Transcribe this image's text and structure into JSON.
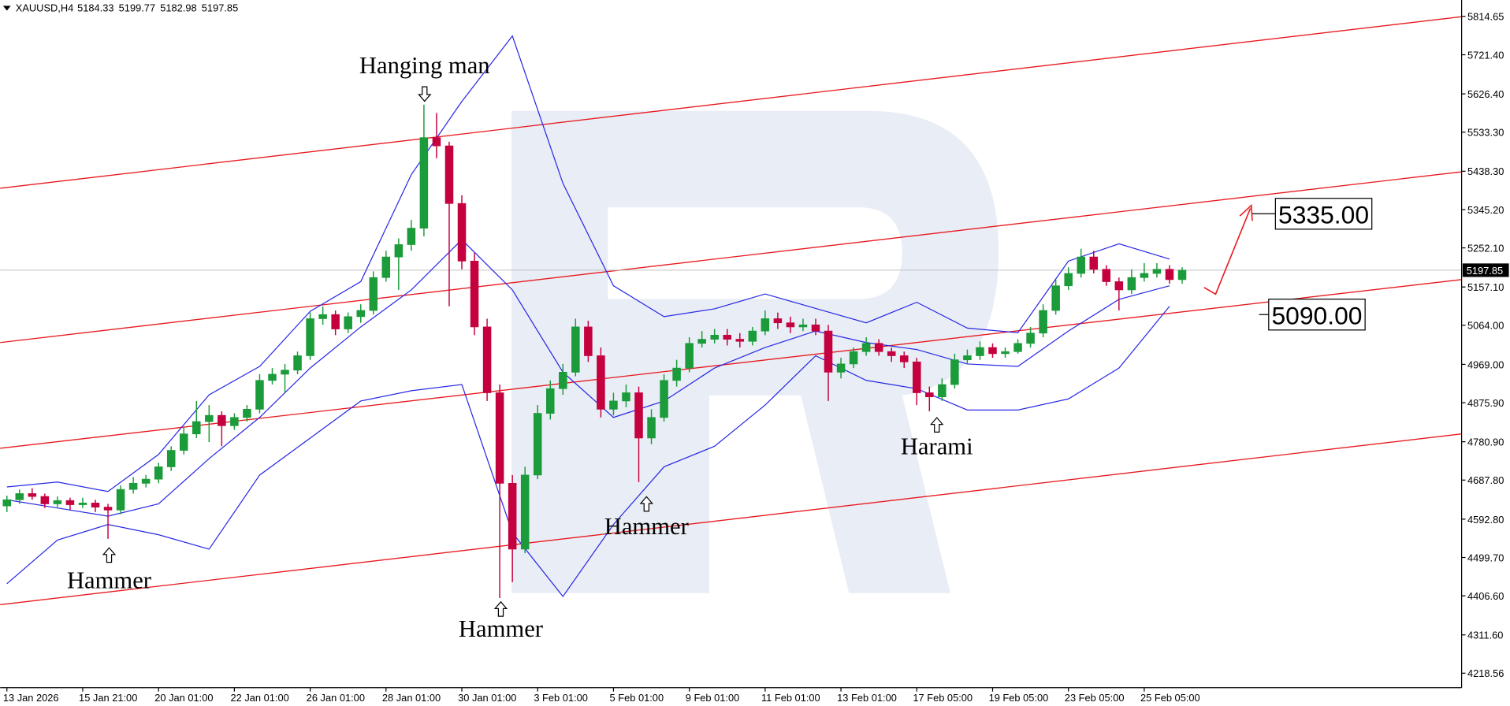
{
  "chart_data": {
    "type": "candlestick",
    "title": "XAUUSD,H4",
    "title_values": [
      5184.33,
      5199.77,
      5182.98,
      5197.85
    ],
    "up_color": "#1b9b3a",
    "down_color": "#c4003f",
    "categories": [
      "13 Jan 2026",
      null,
      null,
      null,
      null,
      null,
      "15 Jan 21:00",
      null,
      null,
      null,
      null,
      null,
      "20 Jan 01:00",
      null,
      null,
      null,
      null,
      null,
      "22 Jan 01:00",
      null,
      null,
      null,
      null,
      null,
      "26 Jan 01:00",
      null,
      null,
      null,
      null,
      null,
      "28 Jan 01:00",
      null,
      null,
      null,
      null,
      null,
      "30 Jan 01:00",
      null,
      null,
      null,
      null,
      null,
      "3 Feb 01:00",
      null,
      null,
      null,
      null,
      null,
      "5 Feb 01:00",
      null,
      null,
      null,
      null,
      null,
      "9 Feb 01:00",
      null,
      null,
      null,
      null,
      null,
      "11 Feb 01:00",
      null,
      null,
      null,
      null,
      null,
      "13 Feb 01:00",
      null,
      null,
      null,
      null,
      null,
      "17 Feb 05:00",
      null,
      null,
      null,
      null,
      null,
      "19 Feb 05:00",
      null,
      null,
      null,
      null,
      null,
      "23 Feb 05:00",
      null,
      null,
      null,
      null,
      null,
      "25 Feb 05:00",
      null,
      null,
      null
    ],
    "open": [
      4625,
      4640,
      4655,
      4648,
      4630,
      4638,
      4628,
      4632,
      4622,
      4615,
      4665,
      4680,
      4690,
      4720,
      4760,
      4800,
      4830,
      4845,
      4820,
      4840,
      4860,
      4930,
      4945,
      4955,
      4990,
      5080,
      5090,
      5055,
      5085,
      5100,
      5180,
      5230,
      5260,
      5300,
      5520,
      5500,
      5360,
      5220,
      5060,
      4900,
      4680,
      4520,
      4700,
      4850,
      4910,
      4950,
      5060,
      4990,
      4860,
      4880,
      4900,
      4790,
      4840,
      4930,
      4960,
      5020,
      5030,
      5040,
      5030,
      5025,
      5050,
      5080,
      5070,
      5060,
      5065,
      5050,
      4950,
      4970,
      5000,
      5020,
      5000,
      4990,
      4975,
      4900,
      4890,
      4920,
      4980,
      4990,
      5010,
      4995,
      5000,
      5020,
      5045,
      5100,
      5160,
      5190,
      5230,
      5200,
      5170,
      5150,
      5180,
      5190,
      5200,
      5175
    ],
    "high": [
      4650,
      4665,
      4668,
      4655,
      4648,
      4645,
      4645,
      4640,
      4630,
      4675,
      4695,
      4700,
      4730,
      4770,
      4815,
      4880,
      4870,
      4855,
      4850,
      4870,
      4945,
      4960,
      4970,
      5000,
      5095,
      5110,
      5100,
      5095,
      5115,
      5195,
      5245,
      5275,
      5320,
      5600,
      5580,
      5510,
      5380,
      5240,
      5080,
      4920,
      4700,
      4720,
      4870,
      4930,
      4970,
      5080,
      5075,
      5010,
      4900,
      4920,
      4915,
      4860,
      4945,
      4980,
      5035,
      5050,
      5055,
      5055,
      5045,
      5060,
      5100,
      5095,
      5085,
      5080,
      5080,
      5065,
      4985,
      5010,
      5035,
      5030,
      5010,
      5000,
      4985,
      4915,
      4935,
      4995,
      5005,
      5025,
      5020,
      5010,
      5030,
      5060,
      5115,
      5175,
      5205,
      5250,
      5245,
      5210,
      5180,
      5200,
      5215,
      5215,
      5210,
      5205
    ],
    "low": [
      4610,
      4630,
      4640,
      4620,
      4622,
      4615,
      4620,
      4610,
      4545,
      4605,
      4655,
      4670,
      4680,
      4710,
      4750,
      4790,
      4780,
      4770,
      4810,
      4830,
      4850,
      4920,
      4900,
      4945,
      4980,
      5065,
      5040,
      5045,
      5070,
      5090,
      5170,
      5150,
      5245,
      5280,
      5470,
      5110,
      5200,
      5040,
      4880,
      4401,
      4440,
      4510,
      4690,
      4835,
      4895,
      4940,
      4975,
      4840,
      4845,
      4865,
      4683,
      4775,
      4830,
      4915,
      4950,
      5010,
      5020,
      5015,
      5010,
      5015,
      5040,
      5055,
      5045,
      5050,
      5040,
      4880,
      4935,
      4960,
      4990,
      4990,
      4975,
      4960,
      4870,
      4855,
      4880,
      4910,
      4970,
      4980,
      4985,
      4985,
      4995,
      5010,
      5035,
      5090,
      5150,
      5180,
      5190,
      5160,
      5100,
      5140,
      5170,
      5180,
      5165,
      5165
    ],
    "close": [
      4640,
      4655,
      4648,
      4630,
      4638,
      4628,
      4632,
      4622,
      4615,
      4665,
      4680,
      4690,
      4720,
      4760,
      4800,
      4830,
      4845,
      4820,
      4840,
      4860,
      4930,
      4945,
      4955,
      4990,
      5080,
      5090,
      5055,
      5085,
      5100,
      5180,
      5230,
      5260,
      5300,
      5520,
      5500,
      5360,
      5220,
      5060,
      4900,
      4680,
      4520,
      4700,
      4850,
      4910,
      4950,
      5060,
      4990,
      4860,
      4880,
      4900,
      4790,
      4840,
      4930,
      4960,
      5020,
      5030,
      5040,
      5030,
      5025,
      5050,
      5080,
      5070,
      5060,
      5065,
      5050,
      4950,
      4970,
      5000,
      5020,
      5000,
      4990,
      4975,
      4900,
      4890,
      4920,
      4980,
      4990,
      5010,
      4995,
      5000,
      5020,
      5045,
      5100,
      5160,
      5190,
      5230,
      5200,
      5170,
      5150,
      5180,
      5190,
      5200,
      5175,
      5197.85
    ],
    "series": [
      {
        "color": "#2828e6",
        "x": [
          0,
          4,
          8,
          12,
          16,
          20,
          24,
          28,
          32,
          36,
          40,
          44,
          48,
          52,
          56,
          60,
          64,
          68,
          72,
          76,
          80,
          84,
          88,
          92
        ],
        "values": [
          4671,
          4683,
          4660,
          4750,
          4895,
          4964,
          5098,
          5170,
          5430,
          5608,
          5767,
          5409,
          5160,
          5085,
          5104,
          5140,
          5105,
          5070,
          5120,
          5057,
          5046,
          5220,
          5262,
          5225
        ]
      },
      {
        "color": "#2828e6",
        "x": [
          0,
          4,
          8,
          12,
          16,
          20,
          24,
          28,
          32,
          36,
          40,
          44,
          48,
          52,
          56,
          60,
          64,
          68,
          72,
          76,
          80,
          84,
          88,
          92
        ],
        "values": [
          4640,
          4620,
          4600,
          4630,
          4740,
          4840,
          4960,
          5060,
          5150,
          5272,
          5150,
          4950,
          4840,
          4880,
          4960,
          5010,
          5050,
          5022,
          5005,
          4970,
          4964,
          5050,
          5127,
          5160
        ]
      },
      {
        "color": "#2828e6",
        "x": [
          0,
          4,
          8,
          12,
          16,
          20,
          24,
          28,
          32,
          36,
          40,
          44,
          48,
          52,
          56,
          60,
          64,
          68,
          72,
          76,
          80,
          84,
          88,
          92
        ],
        "values": [
          4436,
          4542,
          4580,
          4555,
          4520,
          4700,
          4790,
          4880,
          4905,
          4920,
          4560,
          4405,
          4580,
          4720,
          4770,
          4870,
          4990,
          4930,
          4910,
          4858,
          4858,
          4885,
          4960,
          5110
        ]
      }
    ],
    "channel_color": "#e8191e",
    "channel_lines": [
      [
        5397,
        5814
      ],
      [
        5022,
        5437
      ],
      [
        4765,
        5175
      ],
      [
        4385,
        4800
      ]
    ],
    "last_price": 5197.85,
    "targets": [
      5335,
      5090
    ],
    "target_labels": [
      "5335.00",
      "5090.00"
    ],
    "annotations": [
      "Hanging man",
      "Hammer",
      "Hammer",
      "Hammer",
      "Harami"
    ],
    "ylim": [
      4183.3,
      5854.5
    ],
    "yticks": [
      5814.65,
      {
        "value": 5721.4,
        "label": "5721.40"
      },
      {
        "value": 5626.4,
        "label": "5626.40"
      },
      {
        "value": 5533.3,
        "label": "5533.30"
      },
      {
        "value": 5438.3,
        "label": "5438.30"
      },
      {
        "value": 5345.2,
        "label": "5345.20"
      },
      {
        "value": 5252.1,
        "label": "5252.10"
      },
      {
        "value": 5157.1,
        "label": "5157.10"
      },
      {
        "value": 5064,
        "label": "5064.00"
      },
      {
        "value": 4969,
        "label": "4969.00"
      },
      {
        "value": 4875.9,
        "label": "4875.90"
      },
      {
        "value": 4780.9,
        "label": "4780.90"
      },
      {
        "value": 4687.8,
        "label": "4687.80"
      },
      {
        "value": 4592.8,
        "label": "4592.80"
      },
      {
        "value": 4499.7,
        "label": "4499.70"
      },
      {
        "value": 4406.6,
        "label": "4406.60"
      },
      {
        "value": 4311.6,
        "label": "4311.60"
      },
      4218.56
    ],
    "grid": false
  }
}
